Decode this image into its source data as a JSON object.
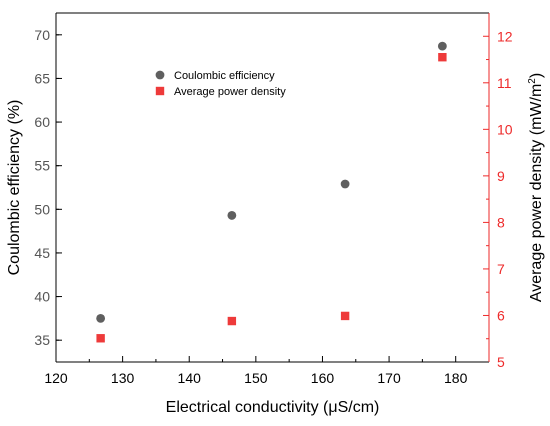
{
  "chart_data": {
    "type": "scatter",
    "xlabel": "Electrical conductivity (μS/cm)",
    "ylabel_left": "Coulombic efficiency (%)",
    "ylabel_right_main": "Average power density (mW/m",
    "ylabel_right_sup": "2",
    "ylabel_right_close": ")",
    "xlim": [
      120,
      185
    ],
    "ylim_left": [
      32.5,
      72.5
    ],
    "ylim_right": [
      5,
      12.5
    ],
    "xticks": [
      120,
      130,
      140,
      150,
      160,
      170,
      180
    ],
    "yticks_left": [
      35,
      40,
      45,
      50,
      55,
      60,
      65,
      70
    ],
    "yticks_right": [
      5,
      6,
      7,
      8,
      9,
      10,
      11,
      12
    ],
    "legend_position": "upper-middle",
    "colors": {
      "left_axis": "#000000",
      "right_axis": "#ee2a2a",
      "left_tick_labels": "#555555",
      "coulombic_marker": "#5f5f5f",
      "power_marker": "#ee3a3a"
    },
    "series": [
      {
        "name": "Coulombic efficiency",
        "axis": "left",
        "marker": "circle",
        "x": [
          126.7,
          146.4,
          163.4,
          178.0
        ],
        "y": [
          37.5,
          49.3,
          52.9,
          68.7
        ]
      },
      {
        "name": "Average power density",
        "axis": "right",
        "marker": "square",
        "x": [
          126.7,
          146.4,
          163.4,
          178.0
        ],
        "y": [
          5.51,
          5.88,
          5.99,
          11.55
        ]
      }
    ]
  }
}
